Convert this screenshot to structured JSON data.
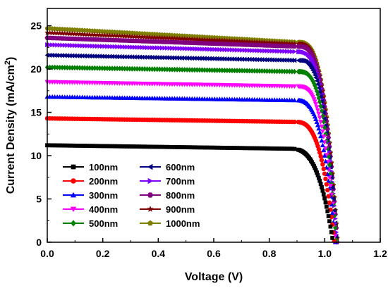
{
  "chart_data": {
    "type": "line",
    "title": "",
    "xlabel": "Voltage (V)",
    "ylabel_main": "Current Density (mA/cm",
    "ylabel_sup": "2",
    "ylabel_close": ")",
    "xlim": [
      0.0,
      1.2
    ],
    "ylim": [
      0,
      27
    ],
    "xticks": [
      "0.0",
      "0.2",
      "0.4",
      "0.6",
      "0.8",
      "1.0",
      "1.2"
    ],
    "yticks": [
      "0",
      "5",
      "10",
      "15",
      "20",
      "25"
    ],
    "grid": false,
    "legend_position": "lower-left",
    "series": [
      {
        "name": "100nm",
        "color": "#000000",
        "marker": "square",
        "jsc": 11.2,
        "voc": 1.03,
        "v90": 0.87,
        "j90": 10.8
      },
      {
        "name": "200nm",
        "color": "#ff0000",
        "marker": "circle",
        "jsc": 14.3,
        "voc": 1.035,
        "v90": 0.89,
        "j90": 13.9
      },
      {
        "name": "300nm",
        "color": "#0000ff",
        "marker": "triangle-up",
        "jsc": 16.8,
        "voc": 1.038,
        "v90": 0.895,
        "j90": 16.4
      },
      {
        "name": "400nm",
        "color": "#ff00ff",
        "marker": "triangle-down",
        "jsc": 18.5,
        "voc": 1.04,
        "v90": 0.9,
        "j90": 18.0
      },
      {
        "name": "500nm",
        "color": "#008000",
        "marker": "diamond",
        "jsc": 20.2,
        "voc": 1.042,
        "v90": 0.905,
        "j90": 19.7
      },
      {
        "name": "600nm",
        "color": "#000080",
        "marker": "triangle-left",
        "jsc": 21.6,
        "voc": 1.043,
        "v90": 0.905,
        "j90": 21.0
      },
      {
        "name": "700nm",
        "color": "#8000ff",
        "marker": "triangle-right",
        "jsc": 22.8,
        "voc": 1.044,
        "v90": 0.905,
        "j90": 22.0
      },
      {
        "name": "800nm",
        "color": "#800080",
        "marker": "hexagon",
        "jsc": 23.6,
        "voc": 1.045,
        "v90": 0.905,
        "j90": 22.6
      },
      {
        "name": "900nm",
        "color": "#800000",
        "marker": "star",
        "jsc": 24.2,
        "voc": 1.046,
        "v90": 0.905,
        "j90": 22.9
      },
      {
        "name": "1000nm",
        "color": "#808000",
        "marker": "pentagon",
        "jsc": 24.7,
        "voc": 1.046,
        "v90": 0.905,
        "j90": 23.1
      }
    ]
  }
}
